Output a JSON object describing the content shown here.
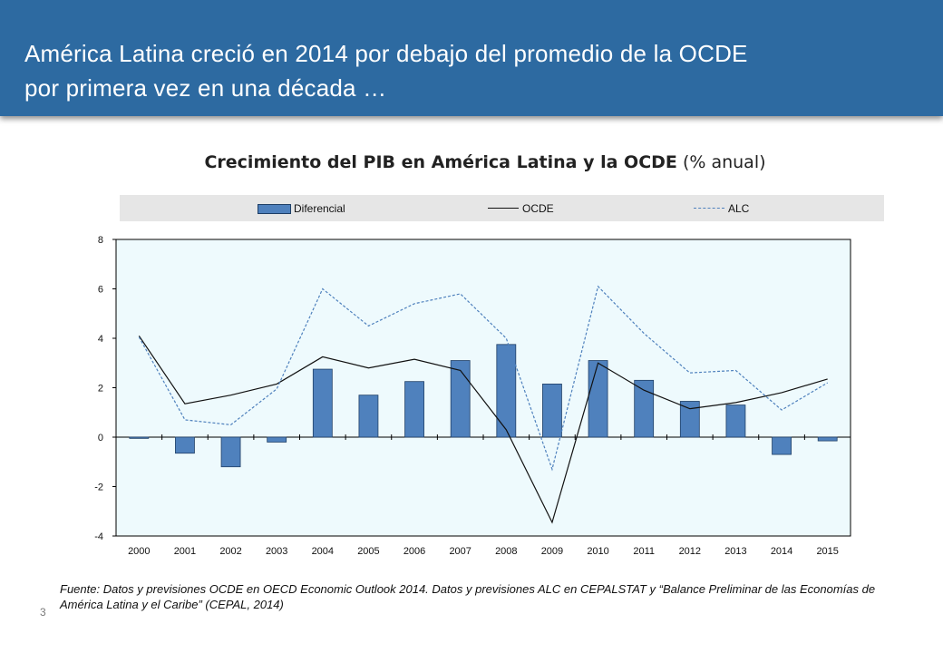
{
  "header": {
    "title_line1": "América Latina creció en 2014 por debajo del promedio de la OCDE",
    "title_line2": "por primera vez en una década …"
  },
  "chart_title": {
    "bold": "Crecimiento del PIB en América Latina y la OCDE",
    "normal": "(% anual)"
  },
  "legend": {
    "diferencial": "Diferencial",
    "ocde": "OCDE",
    "alc": "ALC"
  },
  "colors": {
    "bar": "#4f81bd",
    "bar_stroke": "#1f3f66",
    "ocde": "#111111",
    "alc": "#4f81bd",
    "plot_bg": "#eefafd",
    "header": "#2d6aa1"
  },
  "chart_data": {
    "type": "bar",
    "title": "Crecimiento del PIB en América Latina y la OCDE (% anual)",
    "categories": [
      "2000",
      "2001",
      "2002",
      "2003",
      "2004",
      "2005",
      "2006",
      "2007",
      "2008",
      "2009",
      "2010",
      "2011",
      "2012",
      "2013",
      "2014",
      "2015"
    ],
    "ylim": [
      -4,
      8
    ],
    "yticks": [
      -4,
      -2,
      0,
      2,
      4,
      6,
      8
    ],
    "legend_position": "top",
    "series": [
      {
        "name": "Diferencial",
        "kind": "bar",
        "values": [
          -0.05,
          -0.65,
          -1.2,
          -0.2,
          2.75,
          1.7,
          2.25,
          3.1,
          3.75,
          2.15,
          3.1,
          2.3,
          1.45,
          1.3,
          -0.7,
          -0.15
        ]
      },
      {
        "name": "OCDE",
        "kind": "line",
        "values": [
          4.1,
          1.35,
          1.7,
          2.15,
          3.25,
          2.8,
          3.15,
          2.7,
          0.3,
          -3.45,
          3.0,
          1.9,
          1.15,
          1.4,
          1.8,
          2.35
        ]
      },
      {
        "name": "ALC",
        "kind": "line-dashed",
        "values": [
          4.05,
          0.7,
          0.5,
          1.95,
          6.0,
          4.5,
          5.4,
          5.8,
          4.0,
          -1.3,
          6.1,
          4.2,
          2.6,
          2.7,
          1.1,
          2.2
        ]
      }
    ]
  },
  "source": "Fuente: Datos y previsiones OCDE en OECD Economic Outlook 2014. Datos y previsiones ALC en CEPALSTAT y “Balance Preliminar de las Economías de América Latina y el Caribe” (CEPAL, 2014)",
  "page_number": "3"
}
